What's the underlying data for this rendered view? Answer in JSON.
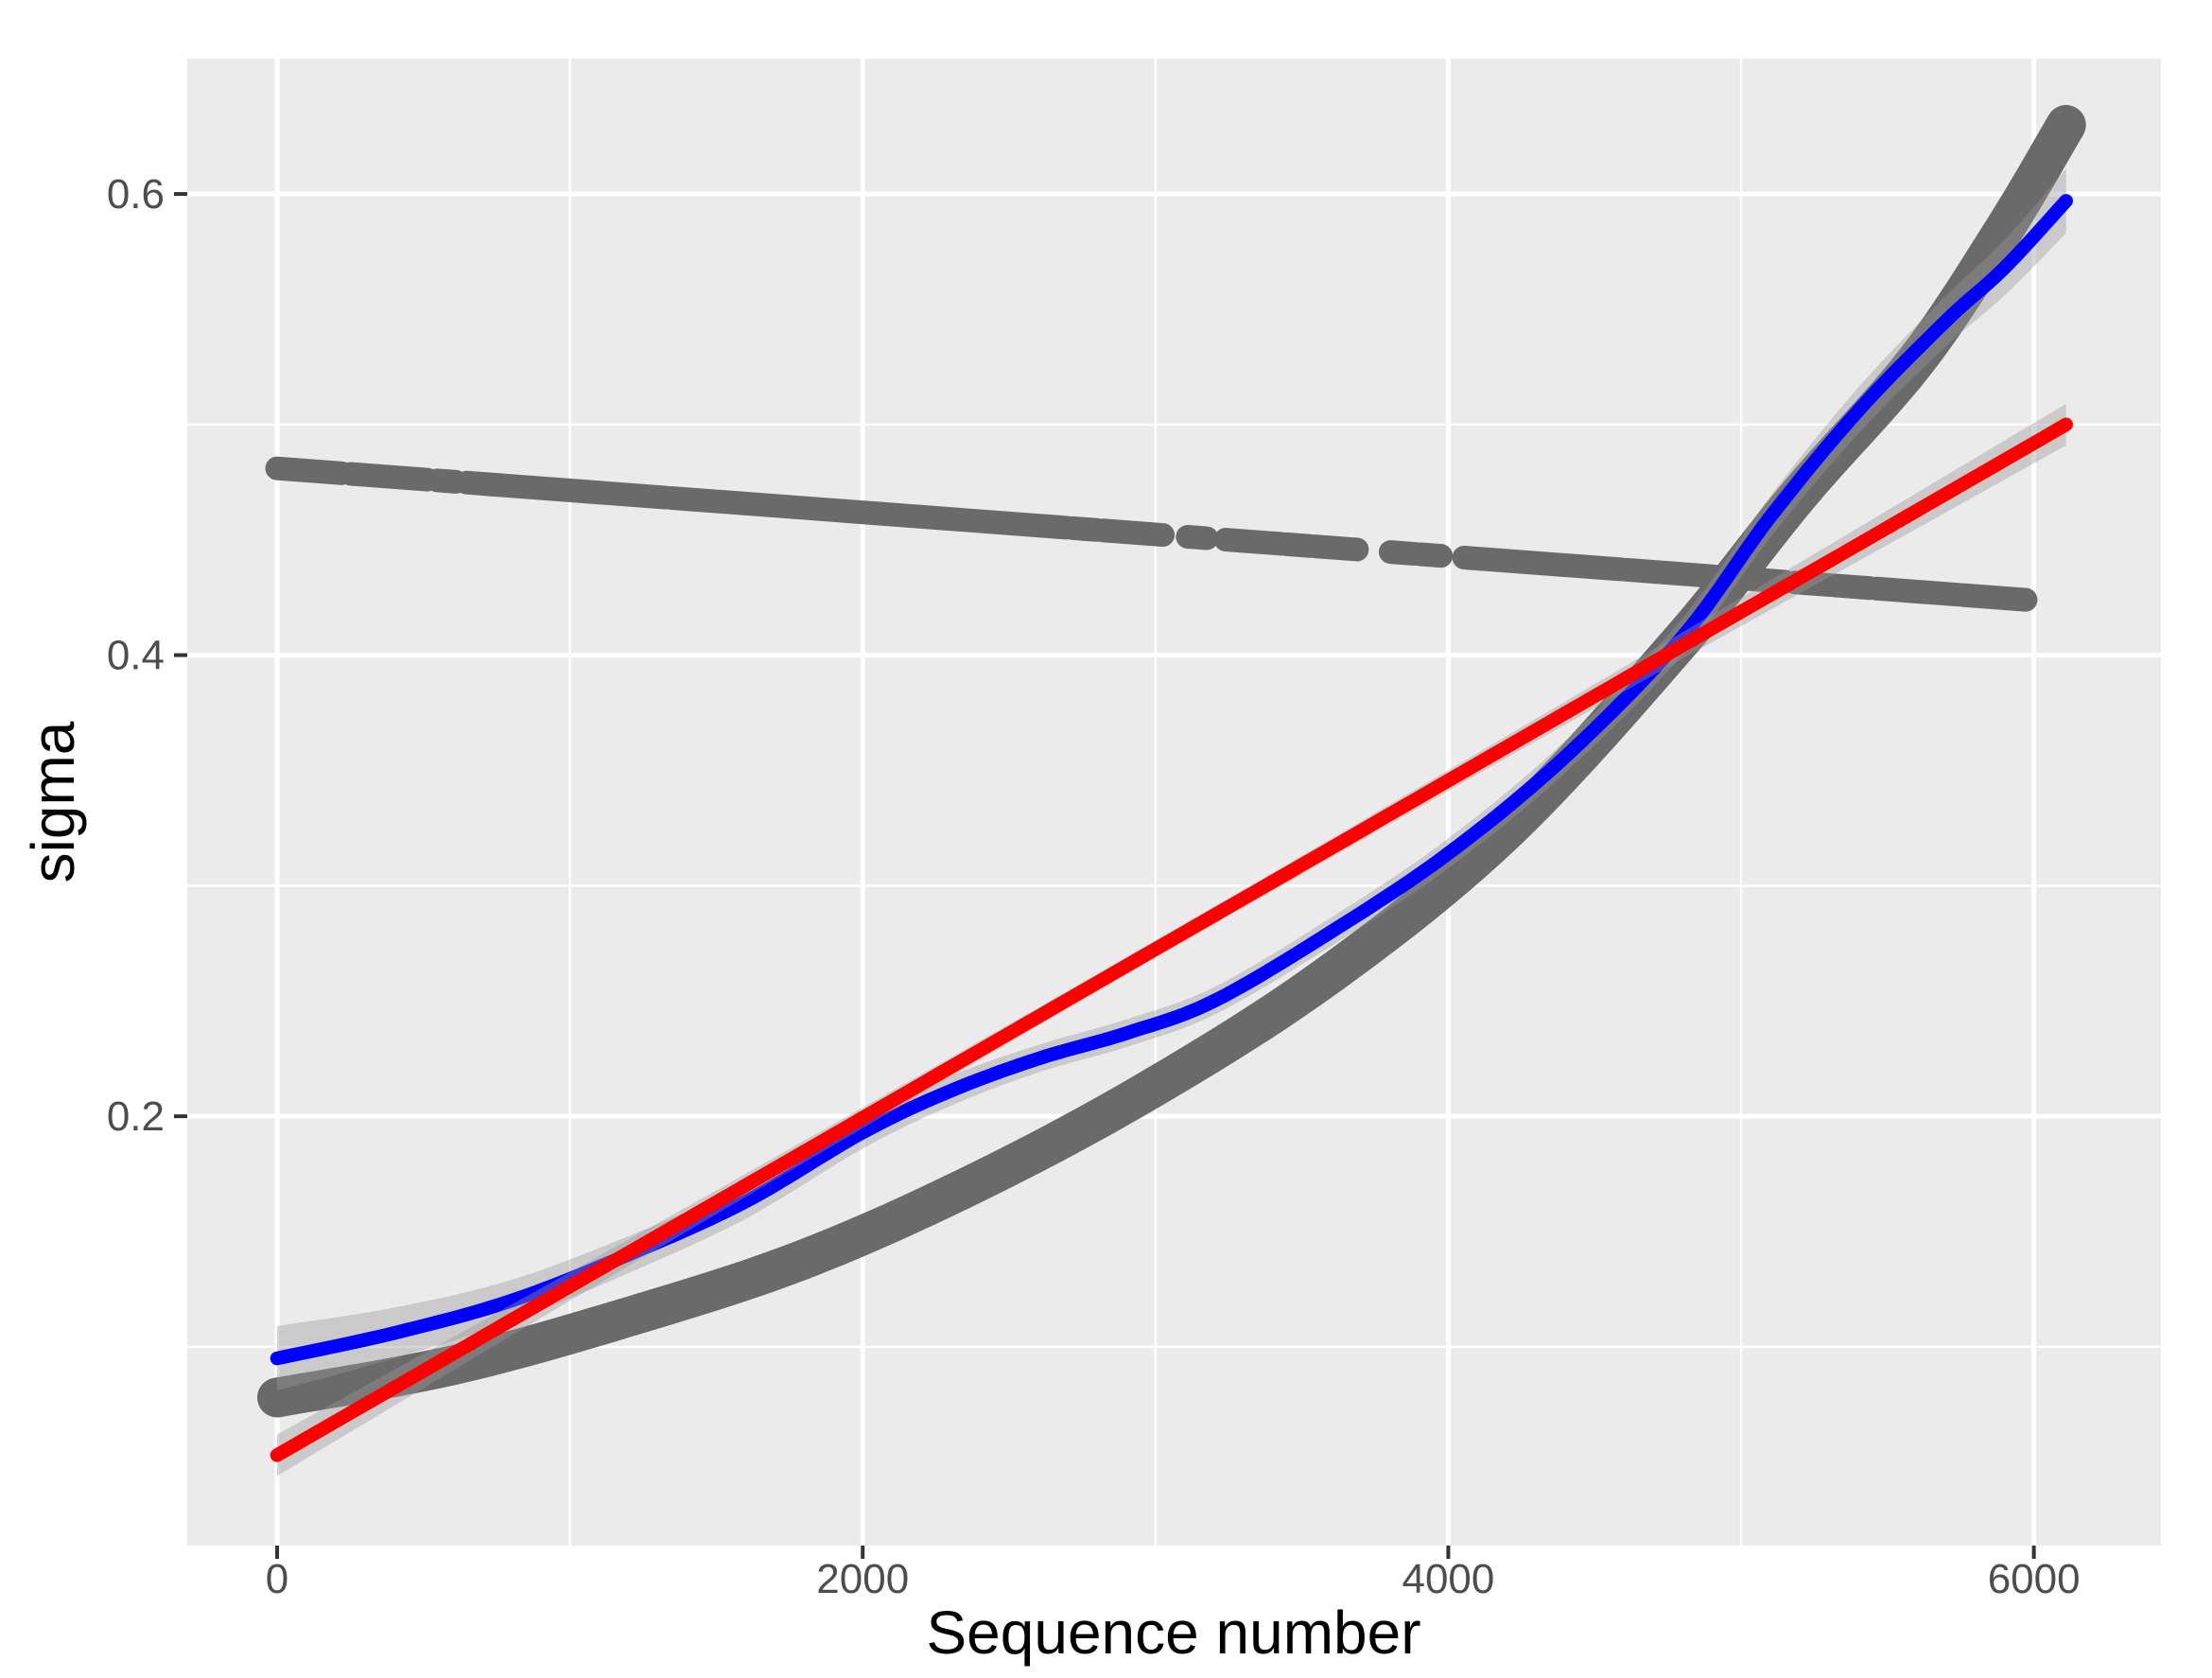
{
  "chart_data": {
    "type": "scatter+line",
    "title": "",
    "xlabel": "Sequence number",
    "ylabel": "sigma",
    "x_domain": [
      -307,
      6434
    ],
    "y_domain": [
      0.0138,
      0.6587
    ],
    "x_ticks": [
      {
        "value": 0,
        "label": "0"
      },
      {
        "value": 2000,
        "label": "2000"
      },
      {
        "value": 4000,
        "label": "4000"
      },
      {
        "value": 6000,
        "label": "6000"
      }
    ],
    "x_minor": [
      1000,
      3000,
      5000
    ],
    "y_ticks": [
      {
        "value": 0.2,
        "label": "0.2"
      },
      {
        "value": 0.4,
        "label": "0.4"
      },
      {
        "value": 0.6,
        "label": "0.6"
      }
    ],
    "y_minor": [
      0.1,
      0.3,
      0.5
    ],
    "grid": "on",
    "legend": "none",
    "colors": {
      "panel_bg": "#EBEBEB",
      "grid": "#FFFFFF",
      "points_gray": "#6A6A6A",
      "smooth_blue": "#0000FF",
      "smooth_red": "#FF0000",
      "ribbon": "rgba(153,153,153,0.40)",
      "tick_mark": "#333333",
      "tick_text": "#4D4D4D",
      "title_text": "#000000"
    },
    "series": [
      {
        "name": "declining-dashed-points",
        "kind": "dashed_trend",
        "color_key": "points_gray",
        "stroke_width": 25,
        "trend": {
          "x": [
            0,
            5972
          ],
          "y": [
            0.481,
            0.424
          ]
        },
        "segments": [
          [
            0,
            220
          ],
          [
            253,
            512
          ],
          [
            548,
            610
          ],
          [
            647,
            755
          ],
          [
            763,
            1327
          ],
          [
            1349,
            2695
          ],
          [
            2715,
            2798
          ],
          [
            2820,
            3025
          ],
          [
            3110,
            3175
          ],
          [
            3240,
            3430
          ],
          [
            3448,
            3530
          ],
          [
            3545,
            3688
          ],
          [
            3803,
            3885
          ],
          [
            3904,
            3975
          ],
          [
            4054,
            4588
          ],
          [
            4607,
            4900
          ],
          [
            4920,
            5150
          ],
          [
            5185,
            5300
          ],
          [
            5320,
            5440
          ],
          [
            5462,
            5740
          ],
          [
            5757,
            5972
          ]
        ]
      },
      {
        "name": "rising-thick-gray-points",
        "kind": "smooth_line",
        "color_key": "points_gray",
        "stroke_width": 42,
        "points": [
          [
            0,
            0.078
          ],
          [
            600,
            0.092
          ],
          [
            1200,
            0.113
          ],
          [
            1800,
            0.138
          ],
          [
            2400,
            0.172
          ],
          [
            3000,
            0.213
          ],
          [
            3600,
            0.262
          ],
          [
            4200,
            0.324
          ],
          [
            4800,
            0.407
          ],
          [
            5200,
            0.47
          ],
          [
            5600,
            0.528
          ],
          [
            5900,
            0.585
          ],
          [
            6110,
            0.63
          ]
        ]
      },
      {
        "name": "blue-gam-smooth",
        "kind": "smooth_line_with_ribbon",
        "color_key": "smooth_blue",
        "stroke_width": 14.5,
        "points": [
          [
            0,
            0.095
          ],
          [
            400,
            0.106
          ],
          [
            800,
            0.12
          ],
          [
            1200,
            0.14
          ],
          [
            1600,
            0.163
          ],
          [
            2000,
            0.193
          ],
          [
            2300,
            0.211
          ],
          [
            2600,
            0.225
          ],
          [
            2900,
            0.236
          ],
          [
            3200,
            0.25
          ],
          [
            3600,
            0.28
          ],
          [
            4000,
            0.314
          ],
          [
            4400,
            0.356
          ],
          [
            4800,
            0.408
          ],
          [
            5100,
            0.46
          ],
          [
            5400,
            0.506
          ],
          [
            5700,
            0.545
          ],
          [
            5900,
            0.568
          ],
          [
            6110,
            0.597
          ]
        ],
        "ribbon_halfwidth": [
          0.014,
          0.011,
          0.009,
          0.008,
          0.0075,
          0.007,
          0.0065,
          0.006,
          0.006,
          0.006,
          0.0062,
          0.0065,
          0.007,
          0.008,
          0.009,
          0.01,
          0.011,
          0.012,
          0.014
        ]
      },
      {
        "name": "red-linear-smooth",
        "kind": "smooth_line_with_ribbon",
        "color_key": "smooth_red",
        "stroke_width": 14.5,
        "points": [
          [
            0,
            0.053
          ],
          [
            500,
            0.0896
          ],
          [
            1000,
            0.1262
          ],
          [
            1500,
            0.1627
          ],
          [
            2000,
            0.1993
          ],
          [
            2500,
            0.2359
          ],
          [
            3000,
            0.2725
          ],
          [
            3500,
            0.309
          ],
          [
            4000,
            0.3456
          ],
          [
            4500,
            0.3822
          ],
          [
            5000,
            0.4188
          ],
          [
            5500,
            0.4553
          ],
          [
            6110,
            0.5
          ]
        ],
        "ribbon_halfwidth": [
          0.009,
          0.0075,
          0.0062,
          0.0052,
          0.0045,
          0.004,
          0.0038,
          0.004,
          0.0045,
          0.0052,
          0.0062,
          0.0075,
          0.009
        ]
      }
    ]
  }
}
